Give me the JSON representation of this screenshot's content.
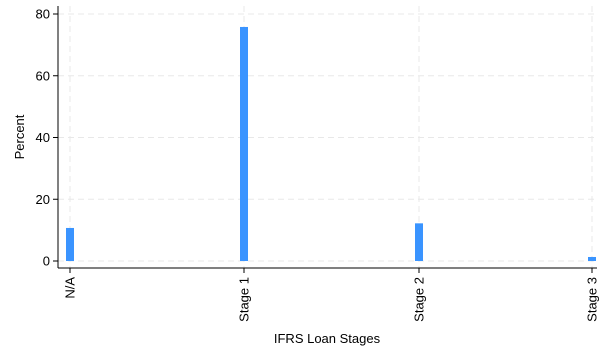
{
  "chart_data": {
    "type": "bar",
    "title": "",
    "xlabel": "IFRS Loan Stages",
    "ylabel": "Percent",
    "categories": [
      "N/A",
      "Stage 1",
      "Stage 2",
      "Stage 3"
    ],
    "values": [
      10.7,
      75.8,
      12.2,
      1.3
    ],
    "ylim": [
      0,
      80
    ],
    "yticks": [
      0,
      20,
      40,
      60,
      80
    ],
    "grid": true,
    "bar_color": "#3a94ff",
    "grid_color": "#e8e8e8"
  }
}
